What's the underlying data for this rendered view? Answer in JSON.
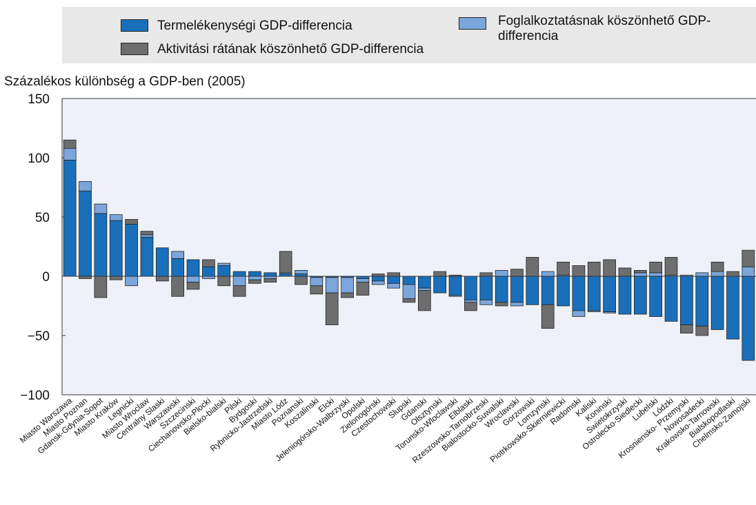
{
  "chart_data": {
    "type": "stacked-bar",
    "y_label": "Százalékos különbség a GDP-ben (2005)",
    "categories": [
      "Miasto Warszawa",
      "Miasto Poznan",
      "Gdansk-Gdynia-Sopot",
      "Miasto Kraków",
      "Legnicki",
      "Miasto Wroclaw",
      "Centralny Slaski",
      "Warszawski",
      "Szczecinski",
      "Ciechanowsko-Plocki",
      "Bielsko-bialski",
      "Pilski",
      "Bydgoski",
      "Rybnicko-Jastrzebski",
      "Miasto Lódz",
      "Poznanski",
      "Koszalinski",
      "Elcki",
      "Jeleniogórsko-Walbrzyski",
      "Opolski",
      "Zielonogórski",
      "Czestochowski",
      "Slupski",
      "Gdanski",
      "Olsztynski",
      "Torunsko-Wloclawski",
      "Elblaski",
      "Rzeszowsko-Tarnobrzeski",
      "Bialostocko-Suwalski",
      "Wroclawski",
      "Gorzowski",
      "Lomzynski",
      "Piotrkowsko-Skierniewicki",
      "Radomski",
      "Kaliski",
      "Koninski",
      "Swietokrzyski",
      "Ostrolecko-Siedlecki",
      "Lubelski",
      "Lódzki",
      "Krosniensko- Przemyski",
      "Nowosadecki",
      "Krakowsko-Tarnowski",
      "Bialskopodlaski",
      "Chelmsko-Zamojski"
    ],
    "series": [
      {
        "name": "Termelékenységi GDP-differencia",
        "color": "#1a6fba",
        "values": [
          98,
          72,
          53,
          47,
          44,
          33,
          24,
          15,
          14,
          8,
          9,
          4,
          4,
          3,
          2,
          2,
          -1,
          -1,
          -1,
          -2,
          -4,
          -6,
          -7,
          -10,
          -14,
          -16,
          -20,
          -20,
          -22,
          -22,
          -24,
          -24,
          -25,
          -29,
          -29,
          -30,
          -32,
          -32,
          -34,
          -38,
          -41,
          -42,
          -45,
          -53,
          -71
        ]
      },
      {
        "name": "Foglalkoztatásnak köszönhető GDP-differencia",
        "color": "#7ba6dc",
        "values": [
          10,
          8,
          8,
          5,
          -8,
          2,
          0,
          6,
          -5,
          -2,
          2,
          -8,
          -3,
          -2,
          1,
          3,
          -7,
          -13,
          -13,
          -3,
          -3,
          -4,
          -12,
          -2,
          0,
          -1,
          -2,
          -4,
          5,
          -3,
          0,
          4,
          1,
          -5,
          -1,
          -1,
          0,
          3,
          3,
          1,
          1,
          3,
          4,
          0,
          8
        ]
      },
      {
        "name": "Aktivitási rátának köszönhető GDP-differencia",
        "color": "#6e6e6e",
        "values": [
          7,
          -2,
          -18,
          -3,
          4,
          3,
          -4,
          -17,
          -6,
          6,
          -8,
          -9,
          -3,
          -3,
          18,
          -7,
          -7,
          -27,
          -4,
          -11,
          2,
          3,
          -3,
          -17,
          4,
          1,
          -7,
          3,
          -3,
          6,
          16,
          -20,
          11,
          9,
          12,
          14,
          7,
          2,
          9,
          15,
          -7,
          -8,
          8,
          4,
          14
        ]
      }
    ],
    "ylim": [
      -100,
      150
    ],
    "yticks": [
      {
        "value": -100,
        "label": "−100"
      },
      {
        "value": -50,
        "label": "−50"
      },
      0,
      50,
      100,
      150
    ]
  }
}
